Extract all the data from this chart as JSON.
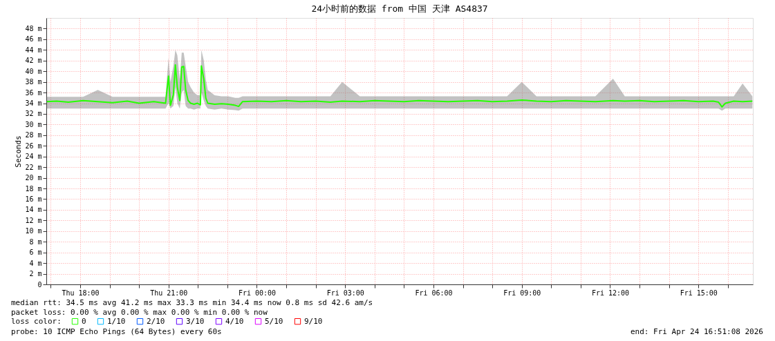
{
  "chart_data": {
    "type": "line",
    "title": "24小时前的数据 from 中国 天津 AS4837",
    "ylabel": "Seconds",
    "legend_title": "loss color:",
    "x": [
      "2026-04-23T16:52",
      "2026-04-23T17:12",
      "2026-04-23T17:36",
      "2026-04-23T18:06",
      "2026-04-23T18:36",
      "2026-04-23T19:06",
      "2026-04-23T19:36",
      "2026-04-23T20:00",
      "2026-04-23T20:30",
      "2026-04-23T20:54",
      "2026-04-23T21:00",
      "2026-04-23T21:04",
      "2026-04-23T21:10",
      "2026-04-23T21:14",
      "2026-04-23T21:18",
      "2026-04-23T21:23",
      "2026-04-23T21:27",
      "2026-04-23T21:31",
      "2026-04-23T21:35",
      "2026-04-23T21:40",
      "2026-04-23T21:45",
      "2026-04-23T21:52",
      "2026-04-23T21:59",
      "2026-04-23T22:05",
      "2026-04-23T22:07",
      "2026-04-23T22:12",
      "2026-04-23T22:16",
      "2026-04-23T22:20",
      "2026-04-23T22:34",
      "2026-04-23T22:48",
      "2026-04-23T23:02",
      "2026-04-23T23:16",
      "2026-04-23T23:23",
      "2026-04-23T23:31",
      "2026-04-24T00:00",
      "2026-04-24T00:30",
      "2026-04-24T01:00",
      "2026-04-24T01:30",
      "2026-04-24T02:00",
      "2026-04-24T02:30",
      "2026-04-24T02:54",
      "2026-04-24T03:30",
      "2026-04-24T04:00",
      "2026-04-24T04:30",
      "2026-04-24T05:00",
      "2026-04-24T05:30",
      "2026-04-24T06:00",
      "2026-04-24T06:30",
      "2026-04-24T07:00",
      "2026-04-24T07:30",
      "2026-04-24T08:00",
      "2026-04-24T08:30",
      "2026-04-24T09:00",
      "2026-04-24T09:30",
      "2026-04-24T10:00",
      "2026-04-24T10:30",
      "2026-04-24T11:00",
      "2026-04-24T11:30",
      "2026-04-24T12:06",
      "2026-04-24T12:30",
      "2026-04-24T13:00",
      "2026-04-24T13:30",
      "2026-04-24T14:00",
      "2026-04-24T14:30",
      "2026-04-24T15:00",
      "2026-04-24T15:30",
      "2026-04-24T15:41",
      "2026-04-24T15:48",
      "2026-04-24T15:55",
      "2026-04-24T16:12",
      "2026-04-24T16:30",
      "2026-04-24T16:50"
    ],
    "series": [
      {
        "name": "0",
        "color": "#26ff00",
        "values": [
          34.3,
          34.4,
          34.2,
          34.5,
          34.3,
          34.1,
          34.4,
          34.0,
          34.3,
          34.0,
          39.1,
          33.6,
          35.6,
          41.2,
          37.0,
          34.5,
          40.8,
          40.9,
          36.5,
          34.5,
          34.0,
          33.8,
          34.0,
          33.7,
          41.0,
          38.5,
          35.0,
          34.0,
          33.8,
          33.9,
          33.8,
          33.6,
          33.4,
          34.3,
          34.4,
          34.3,
          34.5,
          34.3,
          34.4,
          34.2,
          34.4,
          34.3,
          34.5,
          34.4,
          34.3,
          34.5,
          34.4,
          34.3,
          34.4,
          34.5,
          34.3,
          34.4,
          34.6,
          34.4,
          34.3,
          34.5,
          34.4,
          34.3,
          34.5,
          34.4,
          34.5,
          34.3,
          34.4,
          34.5,
          34.3,
          34.4,
          34.2,
          33.3,
          34.0,
          34.4,
          34.3,
          34.4
        ],
        "lower": [
          33.0,
          33.0,
          33.0,
          33.0,
          33.0,
          33.0,
          33.0,
          33.0,
          33.0,
          33.0,
          34.0,
          33.0,
          33.5,
          37.0,
          34.0,
          33.0,
          36.0,
          36.5,
          33.5,
          33.0,
          33.0,
          32.8,
          33.0,
          33.0,
          36.0,
          34.5,
          33.5,
          33.0,
          32.8,
          33.0,
          32.8,
          32.7,
          32.6,
          33.0,
          33.0,
          33.0,
          33.0,
          33.0,
          33.0,
          33.0,
          33.0,
          33.0,
          33.0,
          33.0,
          33.0,
          33.0,
          33.0,
          33.0,
          33.0,
          33.0,
          33.0,
          33.0,
          33.0,
          33.0,
          33.0,
          33.0,
          33.0,
          33.0,
          33.0,
          33.0,
          33.0,
          33.0,
          33.0,
          33.0,
          33.0,
          33.0,
          33.0,
          32.6,
          33.0,
          33.0,
          33.0,
          33.0
        ],
        "upper": [
          35.2,
          35.2,
          35.2,
          35.2,
          36.5,
          35.2,
          35.2,
          35.2,
          35.2,
          35.2,
          42.5,
          38.0,
          41.0,
          44.0,
          43.0,
          38.5,
          43.5,
          43.5,
          41.0,
          38.0,
          37.0,
          36.0,
          35.5,
          35.5,
          44.0,
          42.0,
          38.5,
          36.5,
          35.5,
          35.3,
          35.3,
          35.0,
          35.0,
          35.3,
          35.3,
          35.3,
          35.3,
          35.3,
          35.3,
          35.3,
          38.0,
          35.3,
          35.3,
          35.3,
          35.3,
          35.3,
          35.3,
          35.3,
          35.3,
          35.3,
          35.3,
          35.3,
          38.0,
          35.3,
          35.3,
          35.3,
          35.3,
          35.3,
          38.6,
          35.3,
          35.3,
          35.3,
          35.3,
          35.3,
          35.3,
          35.3,
          35.3,
          35.3,
          35.3,
          35.3,
          37.7,
          35.3
        ]
      },
      {
        "name": "1/10",
        "color": "#00b8ff",
        "values": [
          null,
          null,
          null,
          null,
          null,
          null,
          null,
          null,
          null,
          null,
          null,
          null,
          null,
          null,
          null,
          null,
          null,
          null,
          null,
          null,
          null,
          null,
          null,
          null,
          null,
          null,
          null,
          null,
          null,
          null,
          null,
          null,
          null,
          null,
          null,
          null,
          null,
          null,
          null,
          null,
          null,
          null,
          null,
          null,
          null,
          null,
          null,
          null,
          null,
          null,
          null,
          null,
          null,
          null,
          null,
          null,
          null,
          null,
          null,
          null,
          null,
          null,
          null,
          null,
          null,
          null,
          null,
          null,
          null,
          null,
          null,
          null
        ]
      },
      {
        "name": "2/10",
        "color": "#0059ff",
        "values": [
          null,
          null,
          null,
          null,
          null,
          null,
          null,
          null,
          null,
          null,
          null,
          null,
          null,
          null,
          null,
          null,
          null,
          null,
          null,
          null,
          null,
          null,
          null,
          null,
          null,
          null,
          null,
          null,
          null,
          null,
          null,
          null,
          null,
          null,
          null,
          null,
          null,
          null,
          null,
          null,
          null,
          null,
          null,
          null,
          null,
          null,
          null,
          null,
          null,
          null,
          null,
          null,
          null,
          null,
          null,
          null,
          null,
          null,
          null,
          null,
          null,
          null,
          null,
          null,
          null,
          null,
          null,
          null,
          null,
          null,
          null,
          null
        ]
      },
      {
        "name": "3/10",
        "color": "#5e00ff",
        "values": [
          null,
          null,
          null,
          null,
          null,
          null,
          null,
          null,
          null,
          null,
          null,
          null,
          null,
          null,
          null,
          null,
          null,
          null,
          null,
          null,
          null,
          null,
          null,
          null,
          null,
          null,
          null,
          null,
          null,
          null,
          null,
          null,
          null,
          null,
          null,
          null,
          null,
          null,
          null,
          null,
          null,
          null,
          null,
          null,
          null,
          null,
          null,
          null,
          null,
          null,
          null,
          null,
          null,
          null,
          null,
          null,
          null,
          null,
          null,
          null,
          null,
          null,
          null,
          null,
          null,
          null,
          null,
          null,
          null,
          null,
          null,
          null
        ]
      },
      {
        "name": "4/10",
        "color": "#7e00ff",
        "values": [
          null,
          null,
          null,
          null,
          null,
          null,
          null,
          null,
          null,
          null,
          null,
          null,
          null,
          null,
          null,
          null,
          null,
          null,
          null,
          null,
          null,
          null,
          null,
          null,
          null,
          null,
          null,
          null,
          null,
          null,
          null,
          null,
          null,
          null,
          null,
          null,
          null,
          null,
          null,
          null,
          null,
          null,
          null,
          null,
          null,
          null,
          null,
          null,
          null,
          null,
          null,
          null,
          null,
          null,
          null,
          null,
          null,
          null,
          null,
          null,
          null,
          null,
          null,
          null,
          null,
          null,
          null,
          null,
          null,
          null,
          null,
          null
        ]
      },
      {
        "name": "5/10",
        "color": "#dd00ff",
        "values": [
          null,
          null,
          null,
          null,
          null,
          null,
          null,
          null,
          null,
          null,
          null,
          null,
          null,
          null,
          null,
          null,
          null,
          null,
          null,
          null,
          null,
          null,
          null,
          null,
          null,
          null,
          null,
          null,
          null,
          null,
          null,
          null,
          null,
          null,
          null,
          null,
          null,
          null,
          null,
          null,
          null,
          null,
          null,
          null,
          null,
          null,
          null,
          null,
          null,
          null,
          null,
          null,
          null,
          null,
          null,
          null,
          null,
          null,
          null,
          null,
          null,
          null,
          null,
          null,
          null,
          null,
          null,
          null,
          null,
          null,
          null,
          null
        ]
      },
      {
        "name": "9/10",
        "color": "#ff0000",
        "values": [
          null,
          null,
          null,
          null,
          null,
          null,
          null,
          null,
          null,
          null,
          null,
          null,
          null,
          null,
          null,
          null,
          null,
          null,
          null,
          null,
          null,
          null,
          null,
          null,
          null,
          null,
          null,
          null,
          null,
          null,
          null,
          null,
          null,
          null,
          null,
          null,
          null,
          null,
          null,
          null,
          null,
          null,
          null,
          null,
          null,
          null,
          null,
          null,
          null,
          null,
          null,
          null,
          null,
          null,
          null,
          null,
          null,
          null,
          null,
          null,
          null,
          null,
          null,
          null,
          null,
          null,
          null,
          null,
          null,
          null,
          null,
          null
        ]
      }
    ],
    "xlim": [
      "2026-04-23T16:51",
      "2026-04-24T16:51"
    ],
    "xticks": [
      {
        "value": "2026-04-23T17:00",
        "label": null
      },
      {
        "value": "2026-04-23T18:00",
        "label": "Thu 18:00"
      },
      {
        "value": "2026-04-23T19:00",
        "label": null
      },
      {
        "value": "2026-04-23T20:00",
        "label": null
      },
      {
        "value": "2026-04-23T21:00",
        "label": "Thu 21:00"
      },
      {
        "value": "2026-04-23T22:00",
        "label": null
      },
      {
        "value": "2026-04-23T23:00",
        "label": null
      },
      {
        "value": "2026-04-24T00:00",
        "label": "Fri 00:00"
      },
      {
        "value": "2026-04-24T01:00",
        "label": null
      },
      {
        "value": "2026-04-24T02:00",
        "label": null
      },
      {
        "value": "2026-04-24T03:00",
        "label": "Fri 03:00"
      },
      {
        "value": "2026-04-24T04:00",
        "label": null
      },
      {
        "value": "2026-04-24T05:00",
        "label": null
      },
      {
        "value": "2026-04-24T06:00",
        "label": "Fri 06:00"
      },
      {
        "value": "2026-04-24T07:00",
        "label": null
      },
      {
        "value": "2026-04-24T08:00",
        "label": null
      },
      {
        "value": "2026-04-24T09:00",
        "label": "Fri 09:00"
      },
      {
        "value": "2026-04-24T10:00",
        "label": null
      },
      {
        "value": "2026-04-24T11:00",
        "label": null
      },
      {
        "value": "2026-04-24T12:00",
        "label": "Fri 12:00"
      },
      {
        "value": "2026-04-24T13:00",
        "label": null
      },
      {
        "value": "2026-04-24T14:00",
        "label": null
      },
      {
        "value": "2026-04-24T15:00",
        "label": "Fri 15:00"
      },
      {
        "value": "2026-04-24T16:00",
        "label": null
      }
    ],
    "ylim": [
      0,
      50
    ],
    "yticks": [
      0,
      {
        "value": 2,
        "label": "2 m"
      },
      {
        "value": 4,
        "label": "4 m"
      },
      {
        "value": 6,
        "label": "6 m"
      },
      {
        "value": 8,
        "label": "8 m"
      },
      {
        "value": 10,
        "label": "10 m"
      },
      {
        "value": 12,
        "label": "12 m"
      },
      {
        "value": 14,
        "label": "14 m"
      },
      {
        "value": 16,
        "label": "16 m"
      },
      {
        "value": 18,
        "label": "18 m"
      },
      {
        "value": 20,
        "label": "20 m"
      },
      {
        "value": 22,
        "label": "22 m"
      },
      {
        "value": 24,
        "label": "24 m"
      },
      {
        "value": 26,
        "label": "26 m"
      },
      {
        "value": 28,
        "label": "28 m"
      },
      {
        "value": 30,
        "label": "30 m"
      },
      {
        "value": 32,
        "label": "32 m"
      },
      {
        "value": 34,
        "label": "34 m"
      },
      {
        "value": 36,
        "label": "36 m"
      },
      {
        "value": 38,
        "label": "38 m"
      },
      {
        "value": 40,
        "label": "40 m"
      },
      {
        "value": 42,
        "label": "42 m"
      },
      {
        "value": 44,
        "label": "44 m"
      },
      {
        "value": 46,
        "label": "46 m"
      },
      {
        "value": 48,
        "label": "48 m"
      }
    ],
    "grid": true,
    "legend": "bottom",
    "annotations": [
      "median rtt:  34.5 ms avg  41.2 ms max  33.3 ms min  34.4 ms now  0.8 ms sd  42.6   am/s",
      "packet loss: 0.00 % avg  0.00 % max  0.00 % min  0.00 % now",
      "probe:       10 ICMP Echo Pings (64 Bytes) every 60s",
      "end: Fri Apr 24 16:51:08 2026"
    ]
  }
}
